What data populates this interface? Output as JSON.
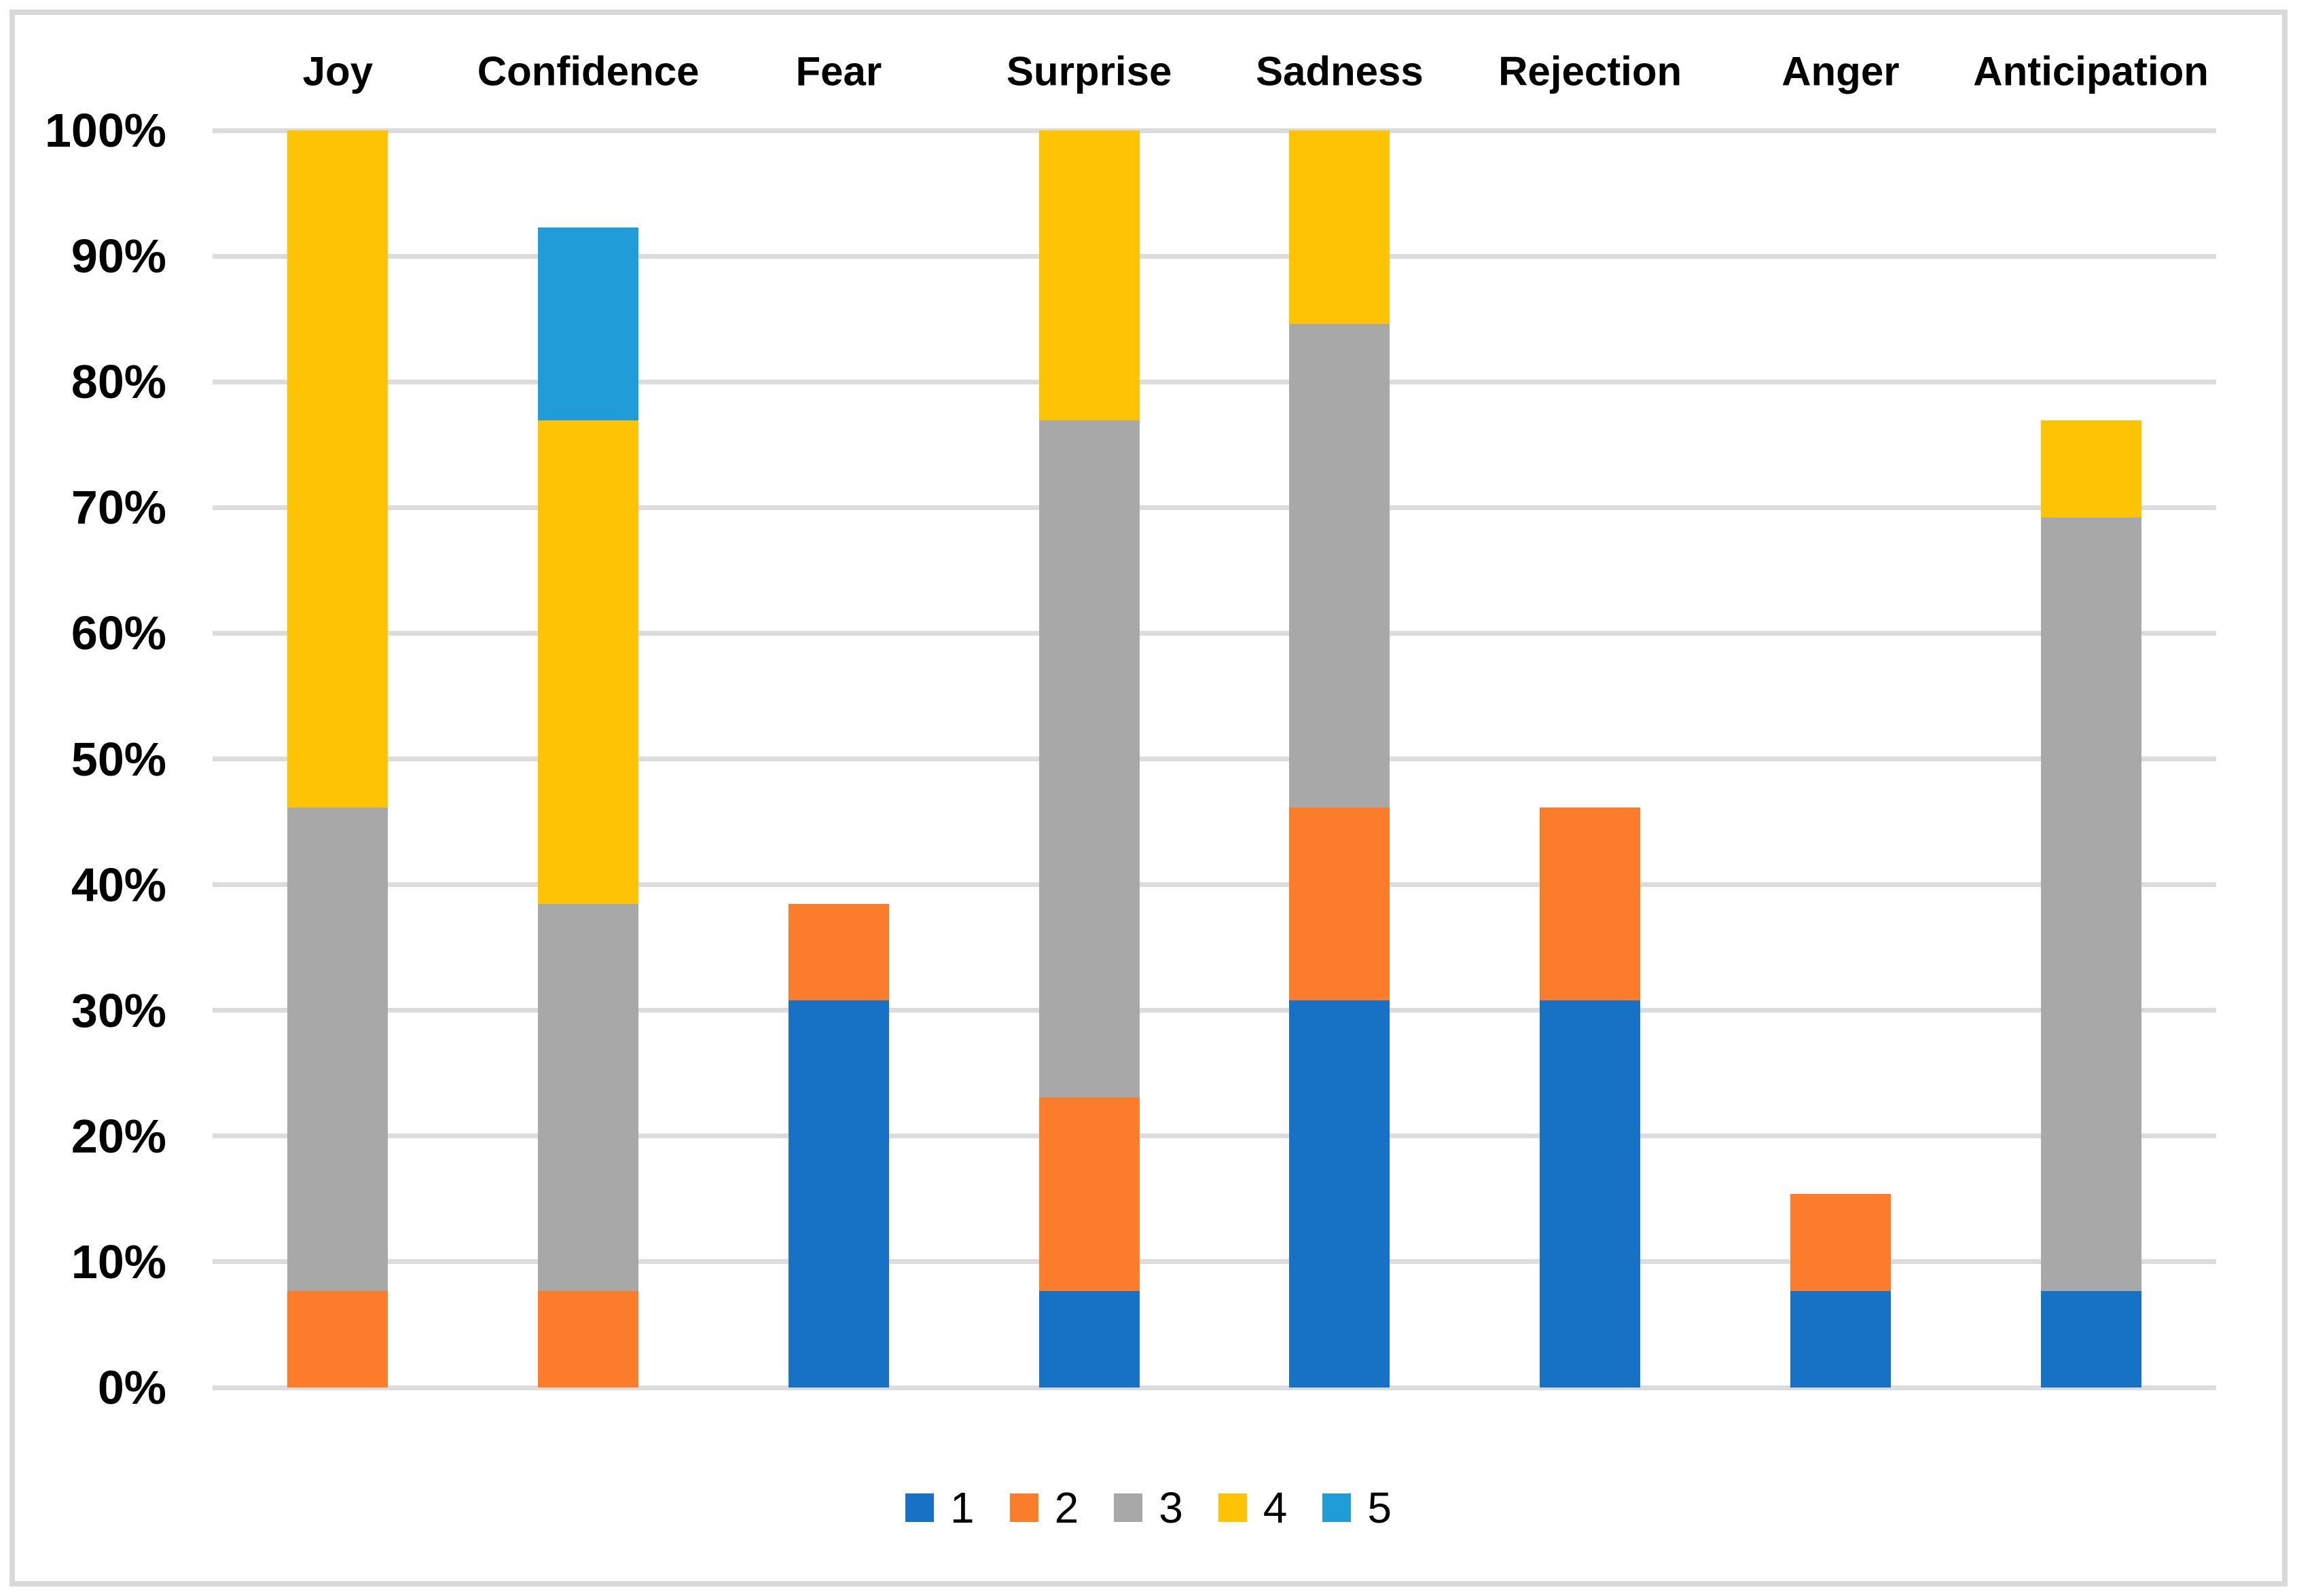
{
  "chart_data": {
    "type": "bar",
    "variant": "stacked-column-percent",
    "title": "",
    "xlabel": "",
    "ylabel": "",
    "categories": [
      "Joy",
      "Confidence",
      "Fear",
      "Surprise",
      "Sadness",
      "Rejection",
      "Anger",
      "Anticipation"
    ],
    "series": [
      {
        "name": "1",
        "color": "#1771c4",
        "values": [
          0,
          0,
          30.77,
          7.69,
          30.77,
          30.77,
          7.69,
          7.69
        ]
      },
      {
        "name": "2",
        "color": "#fb7d2c",
        "values": [
          7.69,
          7.69,
          7.69,
          15.38,
          15.38,
          15.38,
          7.69,
          0
        ]
      },
      {
        "name": "3",
        "color": "#a8a8a8",
        "values": [
          38.46,
          30.77,
          0,
          53.85,
          38.46,
          0,
          0,
          61.54
        ]
      },
      {
        "name": "4",
        "color": "#ffc305",
        "values": [
          53.85,
          38.46,
          0,
          23.08,
          15.38,
          0,
          0,
          7.69
        ]
      },
      {
        "name": "5",
        "color": "#209dd9",
        "values": [
          0,
          15.38,
          0,
          0,
          0,
          0,
          0,
          0
        ]
      }
    ],
    "stack_totals": [
      100,
      92.31,
      38.46,
      100,
      99.99,
      46.15,
      15.38,
      76.92
    ],
    "y_ticks": [
      "0%",
      "10%",
      "20%",
      "30%",
      "40%",
      "50%",
      "60%",
      "70%",
      "80%",
      "90%",
      "100%"
    ],
    "ylim": [
      0,
      100
    ],
    "grid": true,
    "legend_position": "bottom",
    "legend_entries": [
      "1",
      "2",
      "3",
      "4",
      "5"
    ],
    "colors": {
      "background": "#ffffff",
      "gridline": "#dcdcdc",
      "frame_border": "#d9d9d9",
      "text": "#000000"
    }
  }
}
